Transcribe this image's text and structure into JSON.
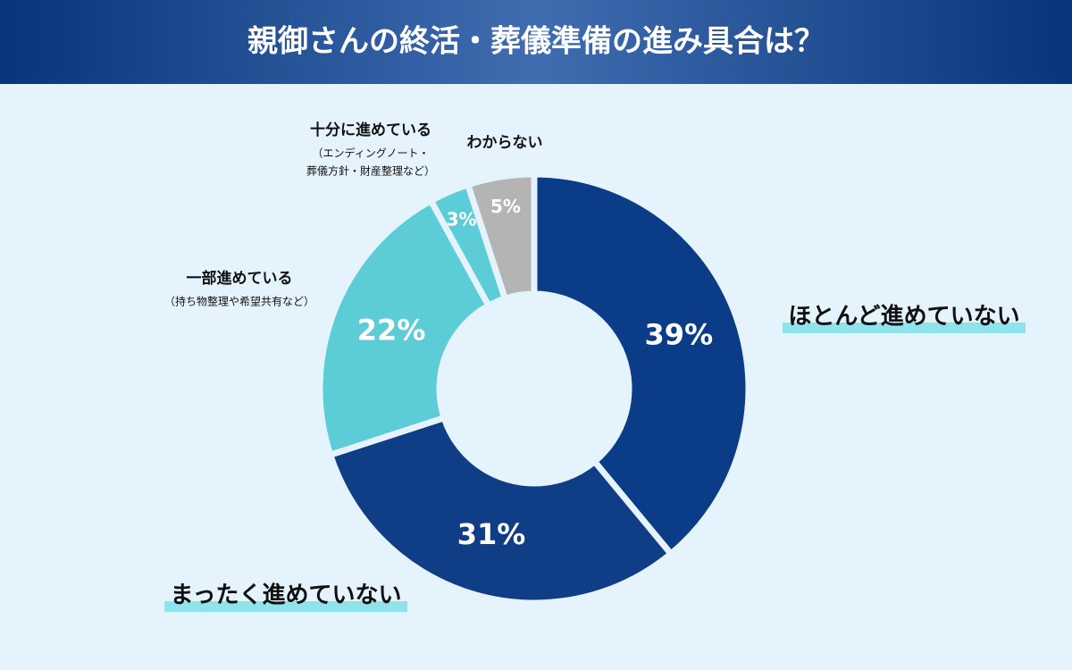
{
  "chart_data": {
    "type": "donut",
    "title": "親御さんの終活・葬儀準備の進み具合は？",
    "categories": [
      "ほとんど進めていない",
      "まったく進めていない",
      "一部進めている",
      "十分に進めている",
      "わからない"
    ],
    "category_notes": [
      null,
      null,
      [
        "（持ち物整理や希望共有など）"
      ],
      [
        "（エンディングノート・",
        "葬儀方針・財産整理など）"
      ],
      null
    ],
    "values": [
      39,
      31,
      22,
      3,
      5
    ],
    "value_labels": [
      "39%",
      "31%",
      "22%",
      "3%",
      "5%"
    ],
    "colors": [
      "#0b3c87",
      "#0f3d86",
      "#5ccdd6",
      "#5ccdd6",
      "#b4b4b4"
    ]
  }
}
